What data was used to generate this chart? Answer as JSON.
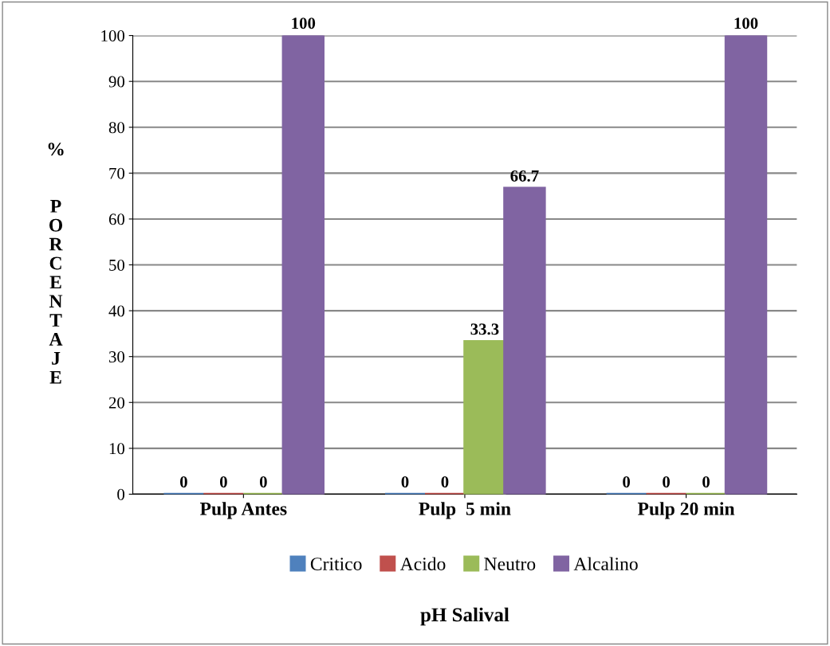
{
  "chart_data": {
    "type": "bar",
    "xlabel": "pH Salival",
    "ylabel": "% PORCENTAJE",
    "categories": [
      "Pulp Antes",
      "Pulp  5 min",
      "Pulp 20 min"
    ],
    "series": [
      {
        "name": "Critico",
        "color": "#4f81bd",
        "values": [
          0,
          0,
          0
        ]
      },
      {
        "name": "Acido",
        "color": "#c0504d",
        "values": [
          0,
          0,
          0
        ]
      },
      {
        "name": "Neutro",
        "color": "#9bbb59",
        "values": [
          0,
          33.3,
          0
        ]
      },
      {
        "name": "Alcalino",
        "color": "#8064a2",
        "values": [
          100,
          66.7,
          100
        ]
      }
    ],
    "ylim": [
      0,
      100
    ],
    "yticks": [
      0,
      10,
      20,
      30,
      40,
      50,
      60,
      70,
      80,
      90,
      100
    ],
    "grid": "y",
    "legend": "bottom",
    "data_labels": true
  }
}
